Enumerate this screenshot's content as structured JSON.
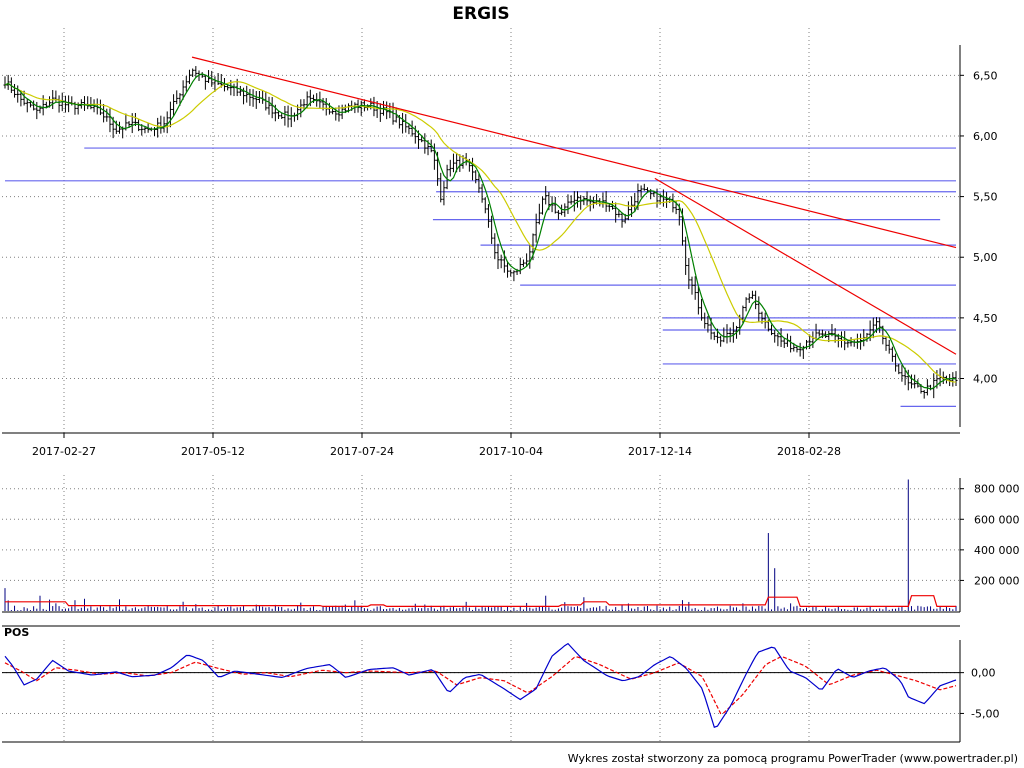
{
  "chart_data": [
    {
      "type": "ohlc",
      "title": "ERGIS",
      "x_tick_labels": [
        "2017-02-27",
        "2017-05-12",
        "2017-07-24",
        "2017-10-04",
        "2017-12-14",
        "2018-02-28"
      ],
      "y_tick_labels": [
        "6,50",
        "6,00",
        "5,50",
        "5,00",
        "4,50",
        "4,00"
      ],
      "y_ticks": [
        6.5,
        6.0,
        5.5,
        5.0,
        4.5,
        4.0
      ],
      "ylim": [
        3.6,
        6.75
      ],
      "grid": true,
      "n_bars": 300,
      "anchors_close": [
        [
          0,
          6.45
        ],
        [
          10,
          6.3
        ],
        [
          20,
          6.2
        ],
        [
          30,
          6.3
        ],
        [
          40,
          6.25
        ],
        [
          50,
          6.25
        ],
        [
          60,
          6.2
        ],
        [
          70,
          6.05
        ],
        [
          80,
          6.1
        ],
        [
          90,
          6.05
        ],
        [
          100,
          6.1
        ],
        [
          108,
          6.3
        ],
        [
          118,
          6.55
        ],
        [
          128,
          6.45
        ],
        [
          140,
          6.4
        ],
        [
          150,
          6.35
        ],
        [
          160,
          6.3
        ],
        [
          170,
          6.2
        ],
        [
          180,
          6.15
        ],
        [
          190,
          6.3
        ],
        [
          200,
          6.25
        ],
        [
          210,
          6.2
        ],
        [
          220,
          6.25
        ],
        [
          230,
          6.25
        ],
        [
          240,
          6.2
        ],
        [
          250,
          6.1
        ],
        [
          260,
          6.0
        ],
        [
          270,
          5.85
        ],
        [
          275,
          5.5
        ],
        [
          280,
          5.75
        ],
        [
          290,
          5.8
        ],
        [
          300,
          5.55
        ],
        [
          310,
          5.0
        ],
        [
          320,
          4.85
        ],
        [
          330,
          5.0
        ],
        [
          340,
          5.5
        ],
        [
          350,
          5.35
        ],
        [
          360,
          5.5
        ],
        [
          370,
          5.45
        ],
        [
          380,
          5.45
        ],
        [
          390,
          5.3
        ],
        [
          400,
          5.55
        ],
        [
          410,
          5.5
        ],
        [
          420,
          5.45
        ],
        [
          425,
          5.4
        ],
        [
          430,
          4.9
        ],
        [
          440,
          4.5
        ],
        [
          450,
          4.3
        ],
        [
          460,
          4.4
        ],
        [
          470,
          4.7
        ],
        [
          480,
          4.45
        ],
        [
          490,
          4.3
        ],
        [
          500,
          4.25
        ],
        [
          510,
          4.35
        ],
        [
          520,
          4.35
        ],
        [
          530,
          4.3
        ],
        [
          540,
          4.3
        ],
        [
          550,
          4.45
        ],
        [
          560,
          4.15
        ],
        [
          570,
          3.95
        ],
        [
          580,
          3.9
        ],
        [
          590,
          4.0
        ],
        [
          600,
          3.98
        ]
      ],
      "trend_lines": [
        {
          "from": [
            118,
            6.65
          ],
          "to": [
            600,
            5.08
          ]
        },
        {
          "from": [
            410,
            5.65
          ],
          "to": [
            600,
            4.2
          ]
        }
      ],
      "support_levels": [
        {
          "value": 5.9,
          "from_bar": 50,
          "to_bar": 600
        },
        {
          "value": 5.63,
          "from_bar": 0,
          "to_bar": 600
        },
        {
          "value": 5.54,
          "from_bar": 272,
          "to_bar": 600
        },
        {
          "value": 5.31,
          "from_bar": 270,
          "to_bar": 590
        },
        {
          "value": 5.1,
          "from_bar": 300,
          "to_bar": 600
        },
        {
          "value": 4.77,
          "from_bar": 325,
          "to_bar": 600
        },
        {
          "value": 4.5,
          "from_bar": 415,
          "to_bar": 600
        },
        {
          "value": 4.4,
          "from_bar": 415,
          "to_bar": 600
        },
        {
          "value": 4.12,
          "from_bar": 415,
          "to_bar": 600
        },
        {
          "value": 3.77,
          "from_bar": 565,
          "to_bar": 600
        }
      ],
      "colors": {
        "bars": "#000000",
        "ma_fast": "#008000",
        "ma_slow": "#cccc00",
        "trend": "#ee0000",
        "support": "#6666ee",
        "grid": "#808080"
      }
    },
    {
      "type": "bar",
      "name": "volume",
      "y_tick_labels": [
        "800 000",
        "600 000",
        "400 000",
        "200 000"
      ],
      "y_ticks": [
        800000,
        600000,
        400000,
        200000
      ],
      "ylim": [
        0,
        870000
      ],
      "spikes": [
        [
          0,
          150000
        ],
        [
          23,
          100000
        ],
        [
          50,
          80000
        ],
        [
          120,
          45000
        ],
        [
          170,
          40000
        ],
        [
          220,
          70000
        ],
        [
          290,
          60000
        ],
        [
          341,
          100000
        ],
        [
          365,
          90000
        ],
        [
          465,
          50000
        ],
        [
          481,
          510000
        ],
        [
          486,
          280000
        ],
        [
          495,
          50000
        ],
        [
          570,
          860000
        ]
      ],
      "ma_levels": [
        [
          0,
          60000
        ],
        [
          40,
          35000
        ],
        [
          200,
          30000
        ],
        [
          230,
          40000
        ],
        [
          240,
          30000
        ],
        [
          350,
          40000
        ],
        [
          365,
          60000
        ],
        [
          380,
          40000
        ],
        [
          470,
          40000
        ],
        [
          480,
          90000
        ],
        [
          500,
          30000
        ],
        [
          560,
          30000
        ],
        [
          570,
          100000
        ],
        [
          587,
          30000
        ],
        [
          600,
          30000
        ]
      ],
      "colors": {
        "bars": "#000080",
        "ma": "#ee0000"
      }
    },
    {
      "type": "line",
      "name": "POS",
      "label": "POS",
      "y_tick_labels": [
        "0,00",
        "-5,00"
      ],
      "y_ticks": [
        0,
        -5
      ],
      "ylim": [
        -8.5,
        4
      ],
      "series": [
        {
          "name": "POS",
          "color": "#0000cc",
          "anchors": [
            [
              0,
              2
            ],
            [
              5,
              0.8
            ],
            [
              12,
              -1.5
            ],
            [
              20,
              -0.8
            ],
            [
              30,
              1.5
            ],
            [
              40,
              0.2
            ],
            [
              55,
              -0.3
            ],
            [
              70,
              0.1
            ],
            [
              80,
              -0.5
            ],
            [
              95,
              -0.3
            ],
            [
              105,
              0.6
            ],
            [
              115,
              2.2
            ],
            [
              125,
              1.5
            ],
            [
              135,
              -0.6
            ],
            [
              145,
              0.2
            ],
            [
              160,
              -0.2
            ],
            [
              175,
              -0.6
            ],
            [
              190,
              0.5
            ],
            [
              205,
              1.0
            ],
            [
              215,
              -0.6
            ],
            [
              230,
              0.4
            ],
            [
              245,
              0.6
            ],
            [
              255,
              -0.3
            ],
            [
              270,
              0.4
            ],
            [
              280,
              -2.5
            ],
            [
              290,
              -0.6
            ],
            [
              300,
              -0.2
            ],
            [
              315,
              -2.0
            ],
            [
              325,
              -3.3
            ],
            [
              335,
              -2.0
            ],
            [
              345,
              2.0
            ],
            [
              355,
              3.6
            ],
            [
              365,
              1.5
            ],
            [
              380,
              -0.4
            ],
            [
              390,
              -1.0
            ],
            [
              400,
              -0.5
            ],
            [
              410,
              1.0
            ],
            [
              420,
              2.0
            ],
            [
              430,
              0.5
            ],
            [
              440,
              -2.0
            ],
            [
              448,
              -7.0
            ],
            [
              458,
              -4.0
            ],
            [
              468,
              0.0
            ],
            [
              475,
              2.5
            ],
            [
              485,
              3.2
            ],
            [
              495,
              0.2
            ],
            [
              505,
              -0.6
            ],
            [
              515,
              -2.2
            ],
            [
              525,
              0.5
            ],
            [
              535,
              -0.6
            ],
            [
              545,
              0.2
            ],
            [
              555,
              0.6
            ],
            [
              565,
              -1.0
            ],
            [
              570,
              -3.0
            ],
            [
              580,
              -3.8
            ],
            [
              590,
              -1.6
            ],
            [
              600,
              -0.9
            ]
          ]
        },
        {
          "name": "Signal",
          "color": "#ee0000",
          "anchors": [
            [
              0,
              1.2
            ],
            [
              10,
              0.2
            ],
            [
              20,
              -1.0
            ],
            [
              32,
              0.6
            ],
            [
              45,
              0.3
            ],
            [
              60,
              -0.2
            ],
            [
              75,
              0.0
            ],
            [
              90,
              -0.4
            ],
            [
              105,
              0.0
            ],
            [
              120,
              1.3
            ],
            [
              135,
              0.5
            ],
            [
              150,
              -0.2
            ],
            [
              165,
              0.0
            ],
            [
              180,
              -0.5
            ],
            [
              200,
              0.3
            ],
            [
              215,
              0.0
            ],
            [
              230,
              0.2
            ],
            [
              255,
              0.0
            ],
            [
              272,
              0.2
            ],
            [
              285,
              -1.5
            ],
            [
              300,
              -0.6
            ],
            [
              315,
              -1.0
            ],
            [
              330,
              -2.5
            ],
            [
              345,
              -0.5
            ],
            [
              360,
              2.0
            ],
            [
              375,
              1.0
            ],
            [
              395,
              -0.8
            ],
            [
              410,
              0.0
            ],
            [
              425,
              1.2
            ],
            [
              440,
              -0.5
            ],
            [
              452,
              -5.2
            ],
            [
              465,
              -2.8
            ],
            [
              480,
              1.0
            ],
            [
              490,
              2.0
            ],
            [
              505,
              0.8
            ],
            [
              520,
              -1.5
            ],
            [
              535,
              -0.3
            ],
            [
              550,
              0.3
            ],
            [
              560,
              -0.2
            ],
            [
              575,
              -1.0
            ],
            [
              590,
              -2.1
            ],
            [
              600,
              -1.6
            ]
          ]
        }
      ],
      "zero_line_color": "#000000"
    }
  ],
  "footer": {
    "text": "Wykres został stworzony za pomocą programu PowerTrader (www.powertrader.pl)"
  }
}
